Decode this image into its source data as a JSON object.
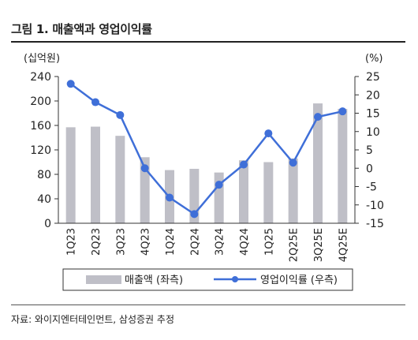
{
  "figure": {
    "title": "그림 1. 매출액과 영업이익률",
    "source": "자료: 와이지엔터테인먼트, 삼성증권 추정"
  },
  "chart_data": {
    "type": "bar",
    "categories": [
      "1Q23",
      "2Q23",
      "3Q23",
      "4Q23",
      "1Q24",
      "2Q24",
      "3Q24",
      "4Q24",
      "1Q25",
      "2Q25E",
      "3Q25E",
      "4Q25E"
    ],
    "y_left": {
      "unit": "(십억원)",
      "range": [
        0,
        240
      ],
      "ticks": [
        0,
        40,
        80,
        120,
        160,
        200,
        240
      ]
    },
    "y_right": {
      "unit": "(%)",
      "range": [
        -15,
        25
      ],
      "ticks": [
        -15,
        -10,
        -5,
        0,
        5,
        10,
        15,
        20,
        25
      ]
    },
    "grid": false,
    "legend_position": "bottom",
    "series": [
      {
        "name": "매출액 (좌측)",
        "type": "bar",
        "axis": "left",
        "color": "#bfbfc7",
        "values": [
          157,
          158,
          143,
          108,
          87,
          89,
          83,
          103,
          100,
          106,
          196,
          187
        ]
      },
      {
        "name": "영업이익률 (우측)",
        "type": "line",
        "axis": "right",
        "color": "#3f6fd8",
        "values": [
          23,
          18,
          14.5,
          0,
          -8,
          -12.5,
          -4.5,
          1,
          9.5,
          1.5,
          14,
          15.5
        ]
      }
    ]
  }
}
